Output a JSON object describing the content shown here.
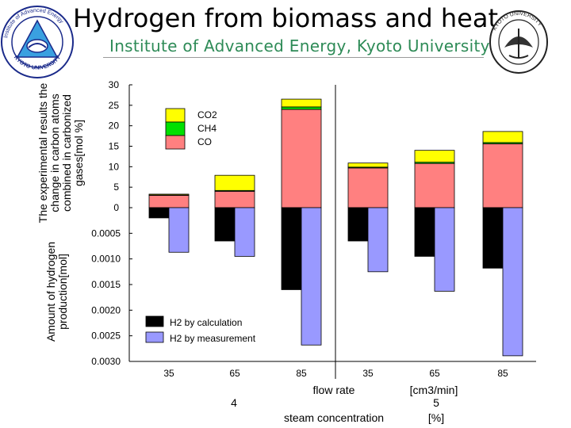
{
  "header": {
    "title": "Hydrogen from biomass and heat",
    "subtitle": "Institute of Advanced Energy, Kyoto University"
  },
  "emblems": {
    "left_text": "Institute of Advanced Energy · KYOTO UNIVERSITY",
    "right_text": "KYOTO UNIVERSITY"
  },
  "colors": {
    "co2": "#ffff00",
    "ch4": "#00e000",
    "co": "#ff8080",
    "h2_calc": "#000000",
    "h2_meas": "#9999ff",
    "subtitle": "#2e8b57"
  },
  "chart_data": {
    "type": "bar",
    "categories": [
      "35",
      "65",
      "85",
      "35",
      "65",
      "85"
    ],
    "groups": [
      {
        "label": "4",
        "categories": [
          "35",
          "65",
          "85"
        ]
      },
      {
        "label": "5",
        "categories": [
          "35",
          "65",
          "85"
        ]
      }
    ],
    "xlabel_1": "flow rate",
    "xlabel_1_unit": "[cm3/min]",
    "xlabel_2": "steam concentration",
    "xlabel_2_unit": "[%]",
    "top_panel": {
      "ylabel": "The experimental results the change in carbon atoms combined in carbonized gases[mol %]",
      "ylim": [
        0,
        30
      ],
      "ticks": [
        "0",
        "5",
        "10",
        "15",
        "20",
        "25",
        "30"
      ],
      "stacked": true,
      "series": [
        {
          "name": "CO",
          "values": [
            3.0,
            4.0,
            24.0,
            9.7,
            10.8,
            15.6
          ]
        },
        {
          "name": "CH4",
          "values": [
            0.1,
            0.2,
            0.6,
            0.2,
            0.3,
            0.3
          ]
        },
        {
          "name": "CO2",
          "values": [
            0.2,
            3.7,
            1.9,
            1.0,
            2.9,
            2.7
          ]
        }
      ],
      "legend": [
        "CO2",
        "CH4",
        "CO"
      ]
    },
    "bottom_panel": {
      "ylabel": "Amount of hydrogen production[mol]",
      "ylim": [
        0,
        0.003
      ],
      "inverted": true,
      "ticks": [
        "0.0005",
        "0.0010",
        "0.0015",
        "0.0020",
        "0.0025",
        "0.0030"
      ],
      "series": [
        {
          "name": "H2 by calculation",
          "values": [
            0.0002,
            0.00065,
            0.0016,
            0.00065,
            0.00095,
            0.00118
          ]
        },
        {
          "name": "H2 by measurement",
          "values": [
            0.00087,
            0.00095,
            0.00268,
            0.00125,
            0.00163,
            0.00289
          ]
        }
      ],
      "legend": [
        "H2 by calculation",
        "H2 by measurement"
      ]
    }
  }
}
